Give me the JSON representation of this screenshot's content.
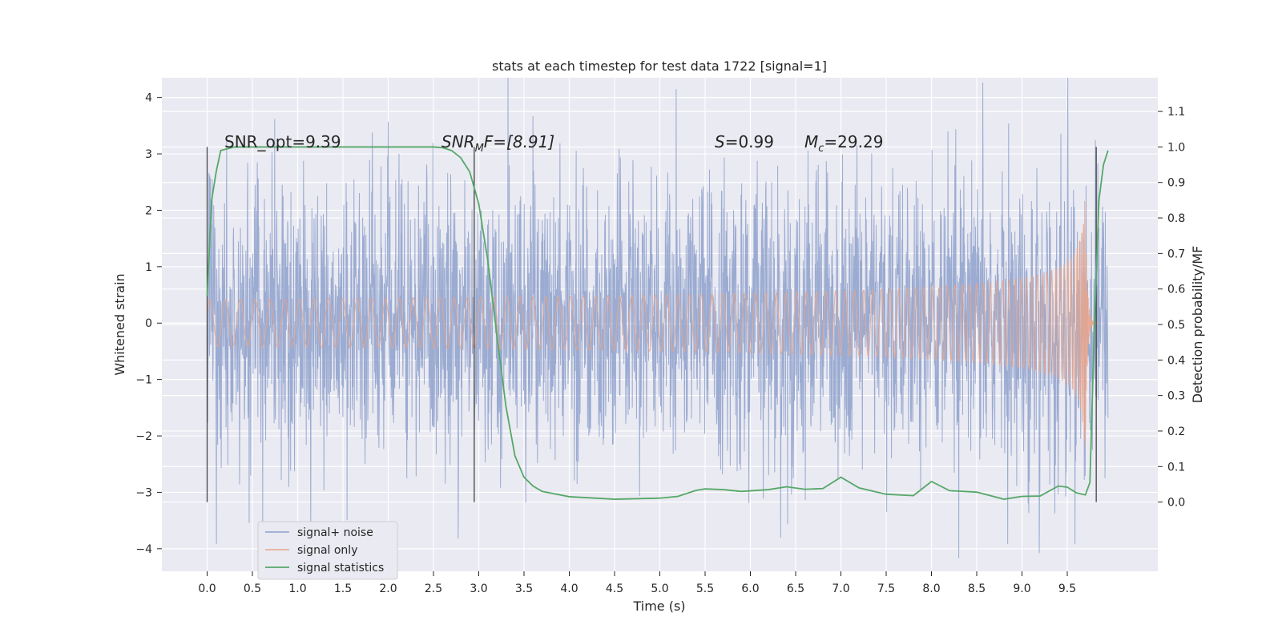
{
  "chart_data": {
    "type": "line",
    "title": "stats at each timestep for test data 1722 [signal=1]",
    "xlabel": "Time (s)",
    "ylabel_left": "Whitened strain",
    "ylabel_right": "Detection probability/MF",
    "xlim": [
      -0.5,
      10.5
    ],
    "ylim_left": [
      -4.4,
      4.35
    ],
    "ylim_right": [
      -0.195,
      1.195
    ],
    "x_ticks": [
      0.0,
      0.5,
      1.0,
      1.5,
      2.0,
      2.5,
      3.0,
      3.5,
      4.0,
      4.5,
      5.0,
      5.5,
      6.0,
      6.5,
      7.0,
      7.5,
      8.0,
      8.5,
      9.0,
      9.5
    ],
    "x_tick_labels": [
      "0.0",
      "0.5",
      "1.0",
      "1.5",
      "2.0",
      "2.5",
      "3.0",
      "3.5",
      "4.0",
      "4.5",
      "5.0",
      "5.5",
      "6.0",
      "6.5",
      "7.0",
      "7.5",
      "8.0",
      "8.5",
      "9.0",
      "9.5"
    ],
    "y_left_ticks": [
      -4,
      -3,
      -2,
      -1,
      0,
      1,
      2,
      3,
      4
    ],
    "y_left_tick_labels": [
      "−4",
      "−3",
      "−2",
      "−1",
      "0",
      "1",
      "2",
      "3",
      "4"
    ],
    "y_right_ticks": [
      0.0,
      0.1,
      0.2,
      0.3,
      0.4,
      0.5,
      0.6,
      0.7,
      0.8,
      0.9,
      1.0,
      1.1
    ],
    "y_right_tick_labels": [
      "0.0",
      "0.1",
      "0.2",
      "0.3",
      "0.4",
      "0.5",
      "0.6",
      "0.7",
      "0.8",
      "0.9",
      "1.0",
      "1.1"
    ],
    "grid": true,
    "legend_position": "lower-left",
    "series": [
      {
        "name": "signal+ noise",
        "axis": "left",
        "color": "#8da0cb",
        "t_range": [
          0.0,
          9.95
        ],
        "envelope_typical": 1.25,
        "envelope_extreme": 4.0
      },
      {
        "name": "signal only",
        "axis": "left",
        "color": "#e8a58c",
        "chirp": {
          "t_start": 0.0,
          "t_merger": 9.7,
          "t_end": 9.85,
          "peak_amplitude": 2.3
        }
      },
      {
        "name": "signal statistics",
        "axis": "right",
        "color": "#55a868",
        "x": [
          0.0,
          0.05,
          0.1,
          0.15,
          0.3,
          0.5,
          1.0,
          2.0,
          2.5,
          2.6,
          2.7,
          2.8,
          2.9,
          3.0,
          3.1,
          3.2,
          3.3,
          3.4,
          3.5,
          3.6,
          3.7,
          4.0,
          4.5,
          5.0,
          5.2,
          5.4,
          5.5,
          5.7,
          5.9,
          6.2,
          6.4,
          6.6,
          6.8,
          7.0,
          7.2,
          7.5,
          7.8,
          8.0,
          8.2,
          8.5,
          8.8,
          9.0,
          9.2,
          9.4,
          9.5,
          9.6,
          9.7,
          9.75,
          9.8,
          9.85,
          9.9,
          9.95
        ],
        "values": [
          0.58,
          0.85,
          0.93,
          0.99,
          1.0,
          1.0,
          1.0,
          1.0,
          1.0,
          0.998,
          0.99,
          0.97,
          0.93,
          0.84,
          0.68,
          0.47,
          0.27,
          0.13,
          0.07,
          0.045,
          0.03,
          0.015,
          0.008,
          0.011,
          0.016,
          0.033,
          0.037,
          0.035,
          0.03,
          0.035,
          0.043,
          0.036,
          0.038,
          0.07,
          0.04,
          0.022,
          0.018,
          0.058,
          0.032,
          0.028,
          0.008,
          0.016,
          0.017,
          0.045,
          0.042,
          0.026,
          0.02,
          0.055,
          0.5,
          0.85,
          0.95,
          0.99
        ]
      }
    ],
    "vertical_markers": [
      0.0,
      2.95,
      9.82
    ],
    "annotations": {
      "snr_opt": "SNR_opt=9.39",
      "snr_mf_label": "SNR",
      "snr_mf_sub": "M",
      "snr_mf_rest": "F=[8.91]",
      "s_label": "S",
      "s_value": "=0.99",
      "mc_label": "M",
      "mc_sub": "c",
      "mc_value": "=29.29"
    }
  }
}
